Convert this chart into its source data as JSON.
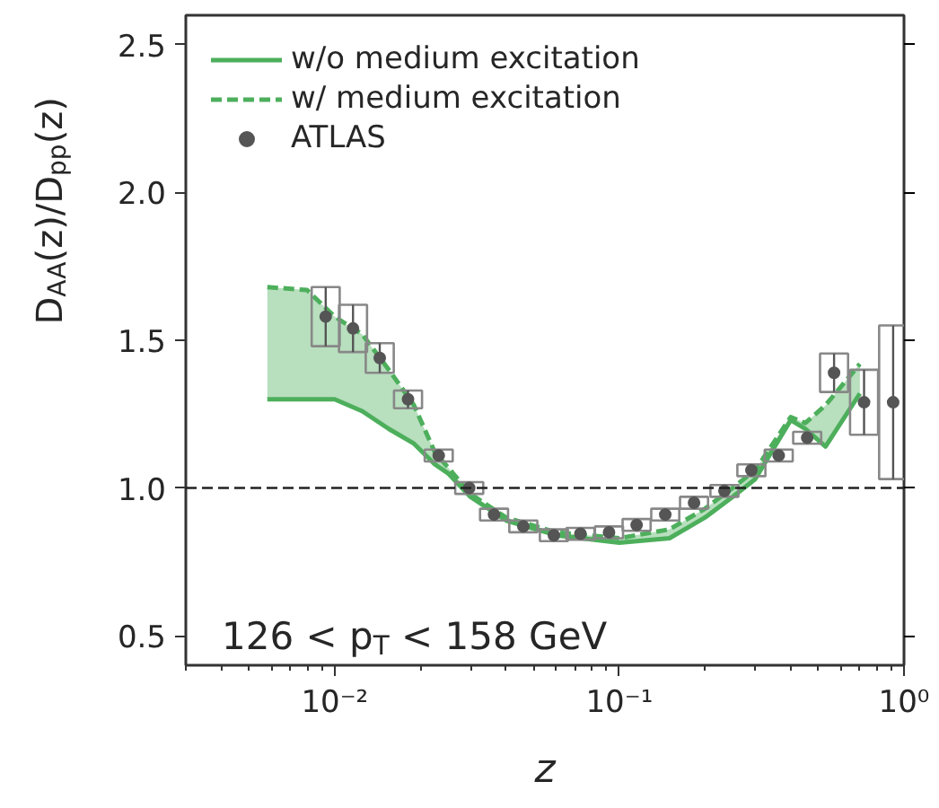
{
  "chart_data": {
    "type": "line",
    "xlabel": "z",
    "ylabel": "D$_{AA}$(z)/D$_{pp}$(z)",
    "log": "x",
    "xlim": [
      0.003,
      1
    ],
    "ylim": [
      0.4,
      2.6
    ],
    "xticks": [
      {
        "value": 0.01,
        "label": "10⁻²"
      },
      {
        "value": 0.1,
        "label": "10⁻¹"
      },
      {
        "value": 1,
        "label": "10⁰"
      }
    ],
    "yticks": [
      0.5,
      {
        "value": 1.0,
        "label": "1.0"
      },
      1.5,
      {
        "value": 2.0,
        "label": "2.0"
      },
      2.5
    ],
    "grid": false,
    "legend": "top left",
    "series": [
      {
        "name": "w/o medium excitation",
        "line_style": "solid",
        "color": "#4daf5c",
        "x": [
          0.0058,
          0.008,
          0.01,
          0.0125,
          0.0155,
          0.019,
          0.0225,
          0.025,
          0.03,
          0.04,
          0.06,
          0.1,
          0.15,
          0.2,
          0.25,
          0.3,
          0.4,
          0.45,
          0.53,
          0.7
        ],
        "values": [
          1.3,
          1.3,
          1.3,
          1.26,
          1.2,
          1.15,
          1.08,
          1.05,
          0.97,
          0.89,
          0.84,
          0.815,
          0.83,
          0.9,
          0.97,
          1.03,
          1.23,
          1.2,
          1.14,
          1.32
        ],
        "lower": [
          1.3,
          1.3,
          1.3,
          1.26,
          1.2,
          1.15,
          1.08,
          1.05,
          0.97,
          0.89,
          0.84,
          0.815,
          0.83,
          0.9,
          0.97,
          1.03,
          1.23,
          1.2,
          1.14,
          1.32
        ],
        "upper": [
          1.68,
          1.67,
          1.58,
          1.52,
          1.4,
          1.28,
          1.12,
          1.07,
          0.98,
          0.9,
          0.85,
          0.83,
          0.86,
          0.93,
          1.0,
          1.06,
          1.24,
          1.22,
          1.28,
          1.42
        ]
      },
      {
        "name": "w/ medium excitation",
        "line_style": "dashed",
        "color": "#4daf5c",
        "x": [
          0.0058,
          0.008,
          0.01,
          0.0125,
          0.0155,
          0.019,
          0.0225,
          0.025,
          0.03,
          0.04,
          0.06,
          0.1,
          0.15,
          0.2,
          0.25,
          0.3,
          0.4,
          0.45,
          0.53,
          0.7
        ],
        "values": [
          1.68,
          1.67,
          1.58,
          1.52,
          1.4,
          1.28,
          1.12,
          1.07,
          0.98,
          0.9,
          0.85,
          0.83,
          0.86,
          0.93,
          1.0,
          1.06,
          1.24,
          1.22,
          1.28,
          1.42
        ]
      },
      {
        "name": "ATLAS",
        "type": "scatter",
        "marker": "circle",
        "color": "#555555",
        "x": [
          0.0093,
          0.0116,
          0.0144,
          0.0181,
          0.0232,
          0.0297,
          0.0363,
          0.046,
          0.0589,
          0.073,
          0.092,
          0.115,
          0.145,
          0.183,
          0.234,
          0.291,
          0.363,
          0.457,
          0.568,
          0.724,
          0.916
        ],
        "values": [
          1.58,
          1.54,
          1.44,
          1.3,
          1.11,
          1.0,
          0.91,
          0.87,
          0.84,
          0.845,
          0.85,
          0.875,
          0.91,
          0.95,
          0.99,
          1.06,
          1.11,
          1.17,
          1.39,
          1.29,
          1.29
        ],
        "errors": [
          0.1,
          0.08,
          0.05,
          0.03,
          0.02,
          0.02,
          0.02,
          0.02,
          0.02,
          0.02,
          0.02,
          0.02,
          0.02,
          0.02,
          0.02,
          0.02,
          0.02,
          0.02,
          0.065,
          0.11,
          0.26
        ]
      }
    ],
    "ref_lines": [
      {
        "axis": "y",
        "value": 1.0,
        "color": "#222222",
        "line_style": "dashed"
      }
    ],
    "annotations": [
      "126 < p$_{T}$ < 158 GeV"
    ]
  }
}
